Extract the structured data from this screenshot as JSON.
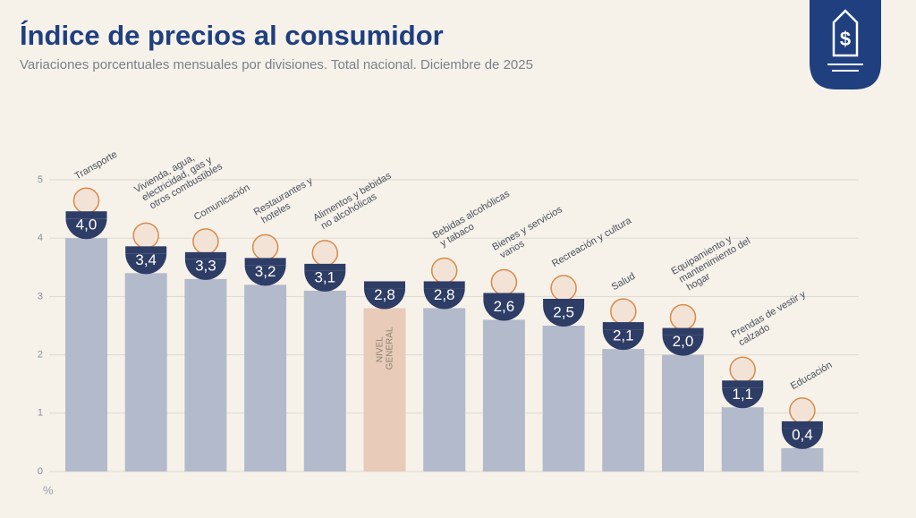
{
  "chart_data": {
    "type": "bar",
    "title": "Índice de precios al consumidor",
    "subtitle": "Variaciones porcentuales mensuales por divisiones. Total nacional. Diciembre de 2025",
    "y_axis_label": "%",
    "categories": [
      "Transporte",
      "Vivienda, agua, electricidad, gas y otros combustibles",
      "Comunicación",
      "Restaurantes y hoteles",
      "Alimentos y bebidas no alcohólicas",
      "NIVEL GENERAL",
      "Bebidas alcohólicas y tabaco",
      "Bienes y servicios varios",
      "Recreación y cultura",
      "Salud",
      "Equipamiento y mantenimiento del hogar",
      "Prendas de vestir y calzado",
      "Educación"
    ],
    "values": [
      4.0,
      3.4,
      3.3,
      3.2,
      3.1,
      2.8,
      2.8,
      2.6,
      2.5,
      2.1,
      2.0,
      1.1,
      0.4
    ],
    "value_labels": [
      "4,0",
      "3,4",
      "3,3",
      "3,2",
      "3,1",
      "2,8",
      "2,8",
      "2,6",
      "2,5",
      "2,1",
      "2,0",
      "1,1",
      "0,4"
    ],
    "color": "#b3bacb",
    "highlight_index": 5,
    "highlight_color": "#e8cbb9",
    "label_color": "#2e3d66",
    "ylim": [
      0,
      5
    ],
    "yticks": [
      0,
      1,
      2,
      3,
      4,
      5
    ],
    "grid": true
  }
}
